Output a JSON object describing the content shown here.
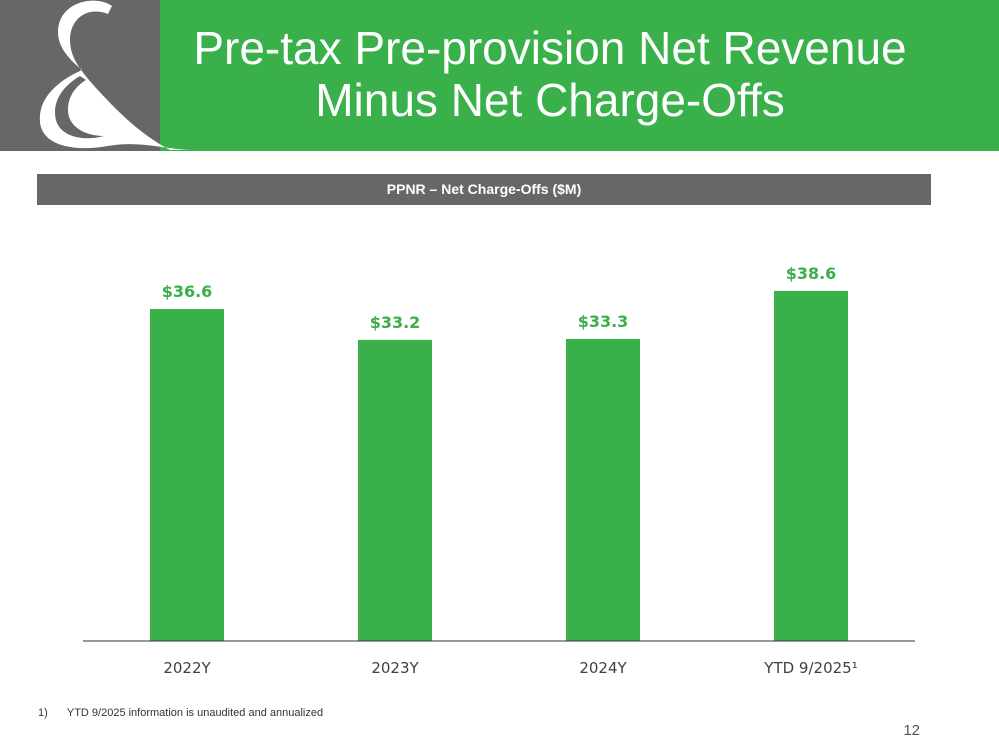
{
  "title_line1": "Pre-tax Pre-provision Net Revenue",
  "title_line2": "Minus Net Charge-Offs",
  "band_label": "PPNR – Net Charge-Offs ($M)",
  "footnote_number": "1)",
  "footnote_text": "YTD 9/2025 information is unaudited and annualized",
  "page_number": "12",
  "colors": {
    "green": "#39b04a",
    "gray": "#666769"
  },
  "chart_data": {
    "type": "bar",
    "title": "PPNR – Net Charge-Offs ($M)",
    "categories": [
      "2022Y",
      "2023Y",
      "2024Y",
      "YTD 9/2025¹"
    ],
    "values": [
      36.6,
      33.2,
      33.3,
      38.6
    ],
    "data_labels": [
      "$36.6",
      "$33.2",
      "$33.3",
      "$38.6"
    ],
    "xlabel": "",
    "ylabel": "",
    "grid": false,
    "legend": "none"
  }
}
